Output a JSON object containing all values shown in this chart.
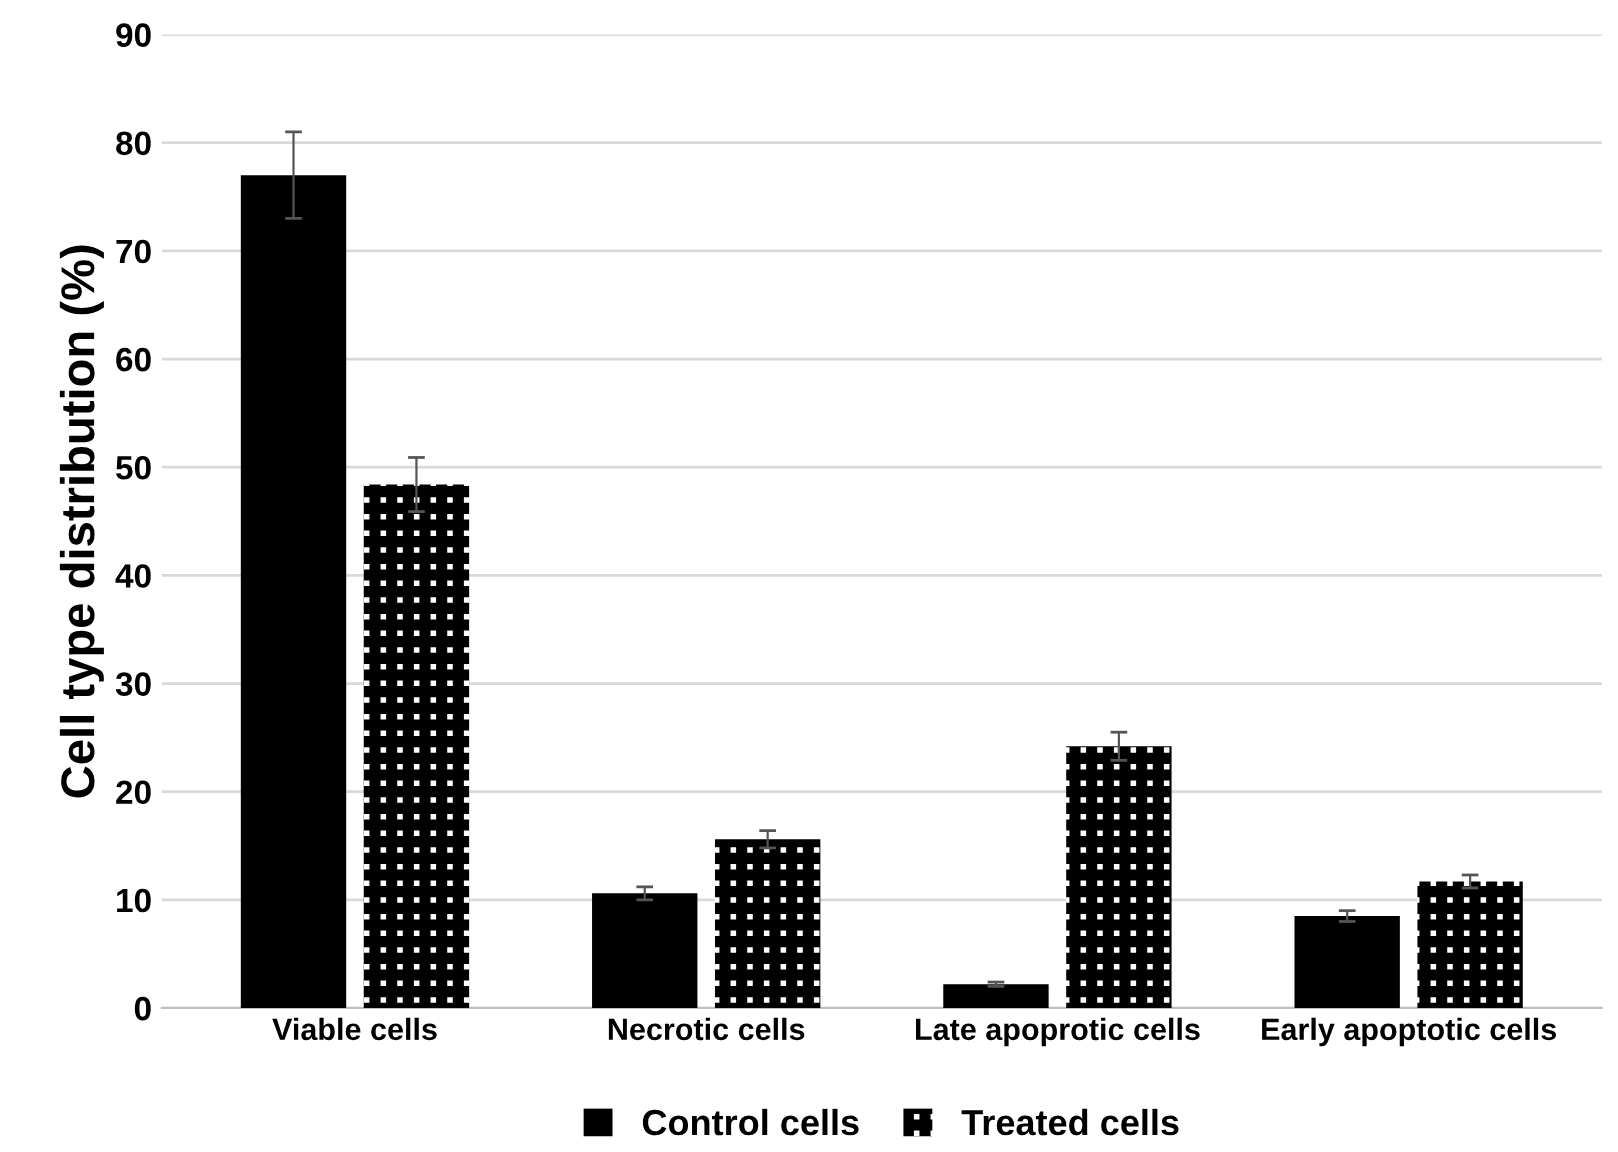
{
  "chart_data": {
    "type": "bar",
    "ylabel": "Cell type distribution (%)",
    "categories": [
      "Viable cells",
      "Necrotic cells",
      "Late apoprotic cells",
      "Early apoptotic cells"
    ],
    "series": [
      {
        "name": "Control cells",
        "color": "#000000",
        "values": [
          77,
          10.6,
          2.2,
          8.5
        ],
        "errors": [
          4,
          0.6,
          0.2,
          0.5
        ]
      },
      {
        "name": "Treated cells",
        "color": "#000000",
        "values": [
          48.4,
          15.6,
          24.2,
          11.7
        ],
        "errors": [
          2.5,
          0.8,
          1.3,
          0.6
        ]
      }
    ],
    "ylim": [
      0,
      90
    ],
    "yticks": [
      0,
      10,
      20,
      30,
      40,
      50,
      60,
      70,
      80,
      90
    ],
    "grid": "y",
    "legend": "bottom"
  }
}
